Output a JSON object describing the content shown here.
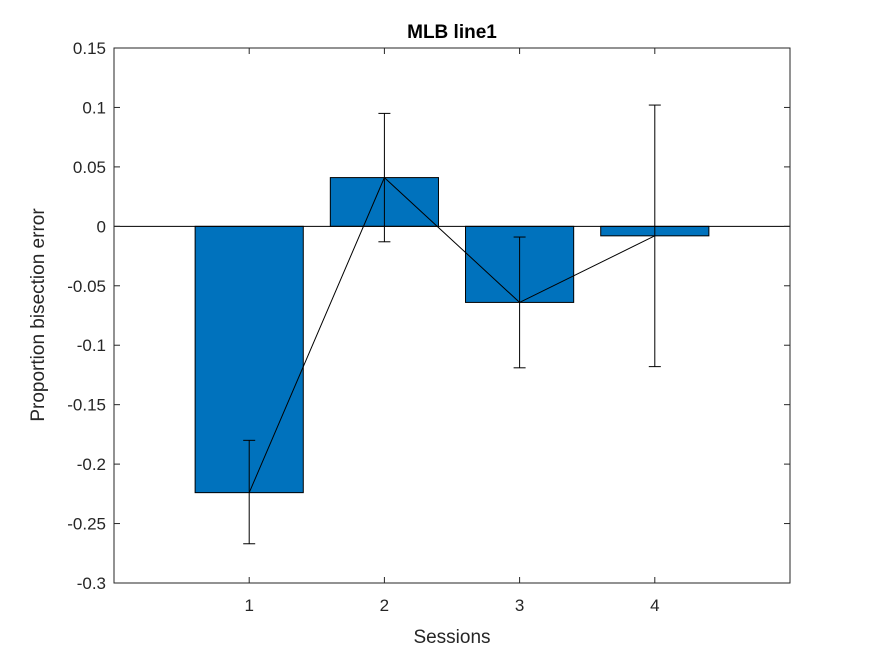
{
  "chart_data": {
    "type": "bar",
    "title": "MLB line1",
    "xlabel": "Sessions",
    "ylabel": "Proportion bisection error",
    "categories": [
      "1",
      "2",
      "3",
      "4"
    ],
    "x": [
      1,
      2,
      3,
      4
    ],
    "values": [
      -0.224,
      0.041,
      -0.064,
      -0.008
    ],
    "error_upper": [
      -0.18,
      0.095,
      -0.009,
      0.102
    ],
    "error_lower": [
      -0.267,
      -0.013,
      -0.119,
      -0.118
    ],
    "xlim": [
      0,
      5
    ],
    "ylim": [
      -0.3,
      0.15
    ],
    "yticks": [
      -0.3,
      -0.25,
      -0.2,
      -0.15,
      -0.1,
      -0.05,
      0,
      0.05,
      0.1,
      0.15
    ],
    "ytick_labels": [
      "-0.3",
      "-0.25",
      "-0.2",
      "-0.15",
      "-0.1",
      "-0.05",
      "0",
      "0.05",
      "0.1",
      "0.15"
    ],
    "bar_color": "#0072BD",
    "line_color": "#000000",
    "grid": false,
    "legend": "none"
  }
}
